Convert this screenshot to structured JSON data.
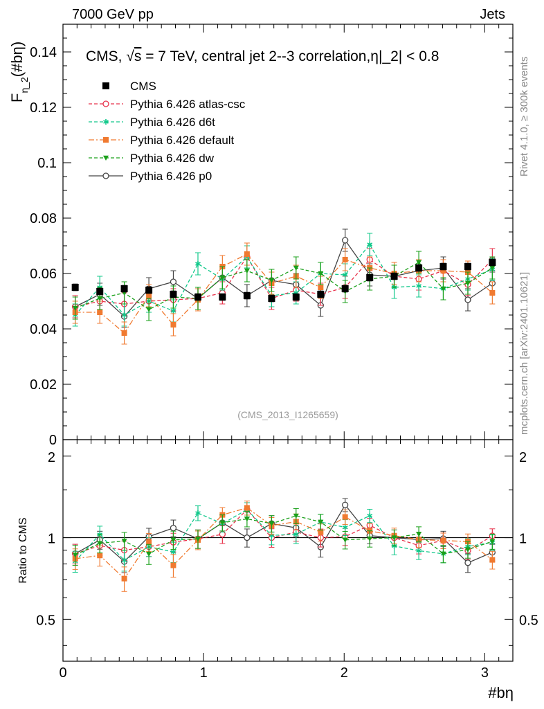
{
  "header": {
    "left": "7000 GeV pp",
    "right": "Jets"
  },
  "side": {
    "rivet": "Rivet 4.1.0, ≥ 300k events",
    "mcplots": "mcplots.cern.ch [arXiv:2401.10621]"
  },
  "chart_data": {
    "type": "scatter",
    "title": "CMS, √s = 7 TeV, central jet 2--3 correlation,η|_2| < 0.8",
    "title_prefix": "CMS, ",
    "title_sqrt": "√",
    "title_s": "s",
    "title_suffix": " = 7 TeV, central jet 2--3 correlation,η|_2| < 0.8",
    "ylabel": "F_η_2(#bη)",
    "ylabel_main": "F",
    "ylabel_sub": "η_2",
    "ylabel_arg": "(#bη)",
    "ratio_ylabel": "Ratio to CMS",
    "xlabel": "#bη",
    "watermark": "(CMS_2013_I1265659)",
    "xlim": [
      0,
      3.2
    ],
    "ylim": [
      0,
      0.15
    ],
    "ratio_ylim": [
      0.35,
      2.3
    ],
    "x_ticks": [
      0,
      1,
      2,
      3
    ],
    "x_tick_labels": [
      "0",
      "1",
      "2",
      "3"
    ],
    "y_ticks": [
      0,
      0.02,
      0.04,
      0.06,
      0.08,
      0.1,
      0.12,
      0.14
    ],
    "y_tick_labels": [
      "0",
      "0.02",
      "0.04",
      "0.06",
      "0.08",
      "0.1",
      "0.12",
      "0.14"
    ],
    "ratio_ticks": [
      0.5,
      1,
      2
    ],
    "ratio_tick_labels": [
      "0.5",
      "1",
      "2"
    ],
    "x": [
      0.087,
      0.262,
      0.436,
      0.611,
      0.785,
      0.96,
      1.134,
      1.309,
      1.484,
      1.658,
      1.833,
      2.007,
      2.182,
      2.356,
      2.531,
      2.705,
      2.88,
      3.054
    ],
    "series": [
      {
        "name": "CMS",
        "color": "#000000",
        "marker": "square",
        "style": "none",
        "values": [
          0.055,
          0.0535,
          0.0545,
          0.054,
          0.0525,
          0.0515,
          0.0515,
          0.052,
          0.051,
          0.0515,
          0.0525,
          0.0545,
          0.0585,
          0.059,
          0.062,
          0.0625,
          0.0625,
          0.064
        ]
      },
      {
        "name": "Pythia 6.426 atlas-csc",
        "color": "#e8314a",
        "marker": "open-circle",
        "style": "dashed",
        "values": [
          0.048,
          0.05,
          0.049,
          0.05,
          0.0505,
          0.051,
          0.053,
          0.066,
          0.051,
          0.054,
          0.0525,
          0.055,
          0.065,
          0.059,
          0.058,
          0.061,
          0.056,
          0.065
        ]
      },
      {
        "name": "Pythia 6.426 d6t",
        "color": "#10c88a",
        "marker": "star",
        "style": "dashed",
        "values": [
          0.045,
          0.055,
          0.045,
          0.05,
          0.0465,
          0.0635,
          0.058,
          0.066,
          0.052,
          0.053,
          0.06,
          0.0595,
          0.0705,
          0.055,
          0.0555,
          0.0545,
          0.058,
          0.0615
        ]
      },
      {
        "name": "Pythia 6.426 default",
        "color": "#f07a30",
        "marker": "square",
        "style": "dashdot",
        "values": [
          0.046,
          0.046,
          0.0385,
          0.052,
          0.0415,
          0.0505,
          0.0625,
          0.067,
          0.0565,
          0.059,
          0.055,
          0.065,
          0.062,
          0.06,
          0.061,
          0.061,
          0.0605,
          0.053
        ]
      },
      {
        "name": "Pythia 6.426 dw",
        "color": "#1aa01a",
        "marker": "triangle-down",
        "style": "dashed",
        "values": [
          0.0475,
          0.051,
          0.053,
          0.047,
          0.0515,
          0.051,
          0.0585,
          0.061,
          0.0575,
          0.062,
          0.06,
          0.0535,
          0.058,
          0.059,
          0.064,
          0.0545,
          0.0565,
          0.062
        ]
      },
      {
        "name": "Pythia 6.426 p0",
        "color": "#444444",
        "marker": "open-circle",
        "style": "solid",
        "values": [
          0.048,
          0.0525,
          0.0445,
          0.0545,
          0.057,
          0.051,
          0.0585,
          0.052,
          0.0575,
          0.056,
          0.0485,
          0.072,
          0.0595,
          0.059,
          0.061,
          0.062,
          0.0505,
          0.0565
        ]
      }
    ]
  }
}
